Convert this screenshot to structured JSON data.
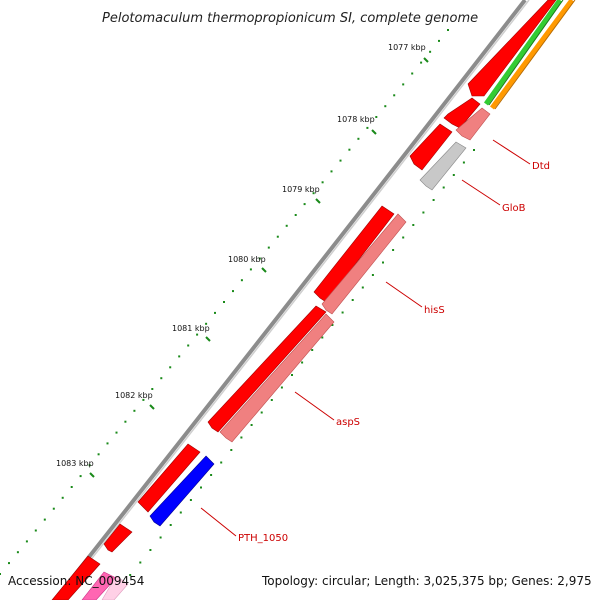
{
  "title": "Pelotomaculum thermopropionicum SI, complete genome",
  "footer": {
    "accession": "Accession: NC_009454",
    "topology": "Topology: circular; Length: 3,025,375 bp; Genes: 2,975"
  },
  "ticks": [
    "1077 kbp",
    "1078 kbp",
    "1079 kbp",
    "1080 kbp",
    "1081 kbp",
    "1082 kbp",
    "1083 kbp"
  ],
  "gene_labels": [
    "Dtd",
    "GloB",
    "hisS",
    "aspS",
    "PTH_1050"
  ],
  "colors": {
    "backbone": "#8a8a8a",
    "cds": "#ff0000",
    "named_gene": "#f08080",
    "hypothetical": "#c8c8c8",
    "highlight": "#0000ff",
    "tick_dots": "#1a8a1a",
    "label": "#cc0000",
    "ring_green": "#33cc33",
    "ring_orange": "#ff9900",
    "ring_magenta": "#ff33aa"
  }
}
